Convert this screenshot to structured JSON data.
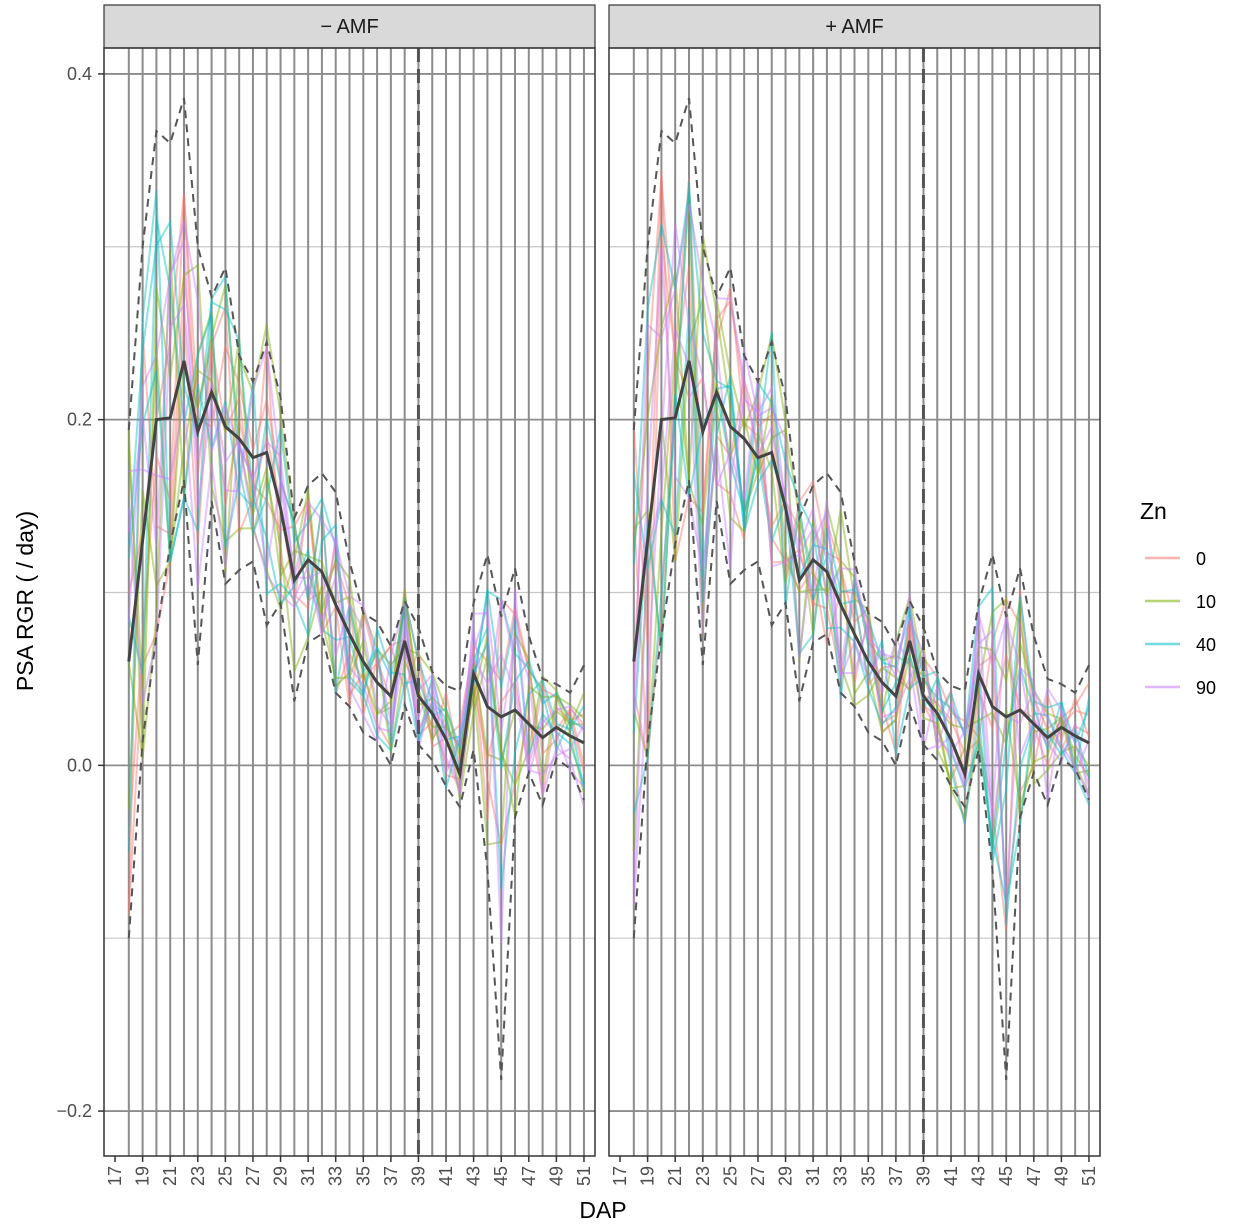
{
  "chart_data": {
    "type": "line",
    "facets": [
      "− AMF",
      "+ AMF"
    ],
    "xlabel": "DAP",
    "ylabel": "PSA RGR ( / day)",
    "x_ticks": [
      17,
      19,
      21,
      23,
      25,
      27,
      29,
      31,
      33,
      35,
      37,
      39,
      41,
      43,
      45,
      47,
      49,
      51
    ],
    "y_ticks": [
      -0.2,
      0.0,
      0.2,
      0.4
    ],
    "xlim": [
      16.2,
      51.8
    ],
    "ylim": [
      -0.226,
      0.415
    ],
    "vline_x": 39,
    "grid": true,
    "legend": {
      "title": "Zn",
      "position": "right",
      "items": [
        {
          "label": "0",
          "color": "#F8766D"
        },
        {
          "label": "10",
          "color": "#7CAE00"
        },
        {
          "label": "40",
          "color": "#00BFC4"
        },
        {
          "label": "90",
          "color": "#C77CFF"
        }
      ]
    },
    "x": [
      18,
      19,
      20,
      21,
      22,
      23,
      24,
      25,
      26,
      27,
      28,
      29,
      30,
      31,
      32,
      33,
      34,
      35,
      36,
      37,
      38,
      39,
      40,
      41,
      42,
      43,
      44,
      45,
      46,
      47,
      48,
      49,
      50,
      51
    ],
    "summary": {
      "mean": [
        0.06,
        0.13,
        0.2,
        0.201,
        0.234,
        0.193,
        0.216,
        0.196,
        0.189,
        0.178,
        0.181,
        0.149,
        0.107,
        0.119,
        0.112,
        0.093,
        0.076,
        0.06,
        0.048,
        0.04,
        0.072,
        0.04,
        0.03,
        0.015,
        -0.005,
        0.053,
        0.034,
        0.028,
        0.032,
        0.024,
        0.016,
        0.022,
        0.017,
        0.013
      ],
      "upper": [
        0.194,
        0.3,
        0.367,
        0.36,
        0.386,
        0.3,
        0.271,
        0.288,
        0.237,
        0.222,
        0.245,
        0.213,
        0.143,
        0.162,
        0.169,
        0.158,
        0.118,
        0.088,
        0.083,
        0.069,
        0.095,
        0.08,
        0.054,
        0.046,
        0.043,
        0.094,
        0.122,
        0.086,
        0.114,
        0.075,
        0.05,
        0.047,
        0.042,
        0.058
      ],
      "lower": [
        -0.1,
        0.014,
        0.075,
        0.128,
        0.165,
        0.058,
        0.153,
        0.105,
        0.113,
        0.118,
        0.081,
        0.094,
        0.037,
        0.071,
        0.076,
        0.042,
        0.034,
        0.019,
        0.014,
        0.0,
        0.035,
        0.012,
        0.003,
        -0.012,
        -0.024,
        0.009,
        -0.06,
        -0.182,
        -0.03,
        -0.004,
        -0.023,
        0.004,
        -0.002,
        -0.02
      ]
    }
  }
}
